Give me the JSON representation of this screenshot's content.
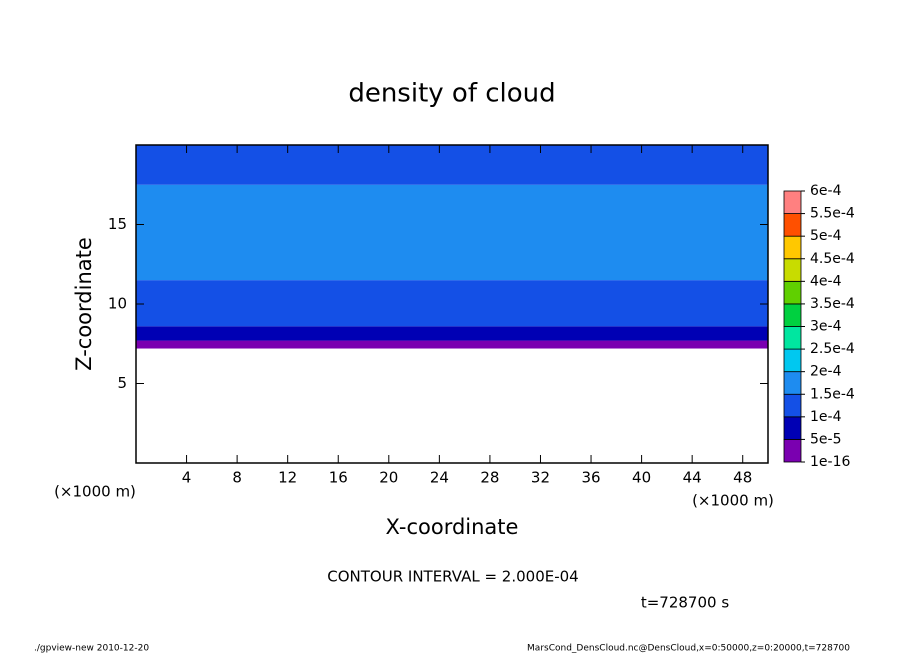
{
  "chart_data": {
    "type": "contour",
    "title": "density of cloud",
    "xlabel": "X-coordinate",
    "ylabel": "Z-coordinate",
    "xunit": "(×1000 m)",
    "yunit": "(×1000 m)",
    "xlim": [
      0,
      50
    ],
    "xticks": [
      4,
      8,
      12,
      16,
      20,
      24,
      28,
      32,
      36,
      40,
      44,
      48
    ],
    "ylim": [
      0,
      20
    ],
    "yticks": [
      5,
      10,
      15
    ],
    "profile": {
      "z": [
        7.2,
        7.7,
        8.6,
        11.5,
        17.5
      ],
      "values": [
        2e-05,
        7e-05,
        0.00012,
        0.00017,
        0.00013
      ]
    },
    "colorbar": {
      "levels": [
        {
          "value": 1e-16,
          "label": "1e-16"
        },
        {
          "value": 5e-05,
          "label": "5e-5"
        },
        {
          "value": 0.0001,
          "label": "1e-4"
        },
        {
          "value": 0.00015,
          "label": "1.5e-4"
        },
        {
          "value": 0.0002,
          "label": "2e-4"
        },
        {
          "value": 0.00025,
          "label": "2.5e-4"
        },
        {
          "value": 0.0003,
          "label": "3e-4"
        },
        {
          "value": 0.00035,
          "label": "3.5e-4"
        },
        {
          "value": 0.0004,
          "label": "4e-4"
        },
        {
          "value": 0.00045,
          "label": "4.5e-4"
        },
        {
          "value": 0.0005,
          "label": "5e-4"
        },
        {
          "value": 0.00055,
          "label": "5.5e-4"
        },
        {
          "value": 0.0006,
          "label": "6e-4"
        }
      ],
      "colors": [
        "#7a00b0",
        "#0000b4",
        "#1450e6",
        "#1e8cf0",
        "#00c8f0",
        "#00e6a0",
        "#00d040",
        "#60d000",
        "#c8dc00",
        "#ffc800",
        "#ff5000",
        "#ff8080"
      ]
    },
    "contour_interval": "CONTOUR INTERVAL = 2.000E-04",
    "time": "t=728700 s",
    "footer_left": "./gpview-new  2010-12-20",
    "footer_right": "MarsCond_DensCloud.nc@DensCloud,x=0:50000,z=0:20000,t=728700"
  }
}
